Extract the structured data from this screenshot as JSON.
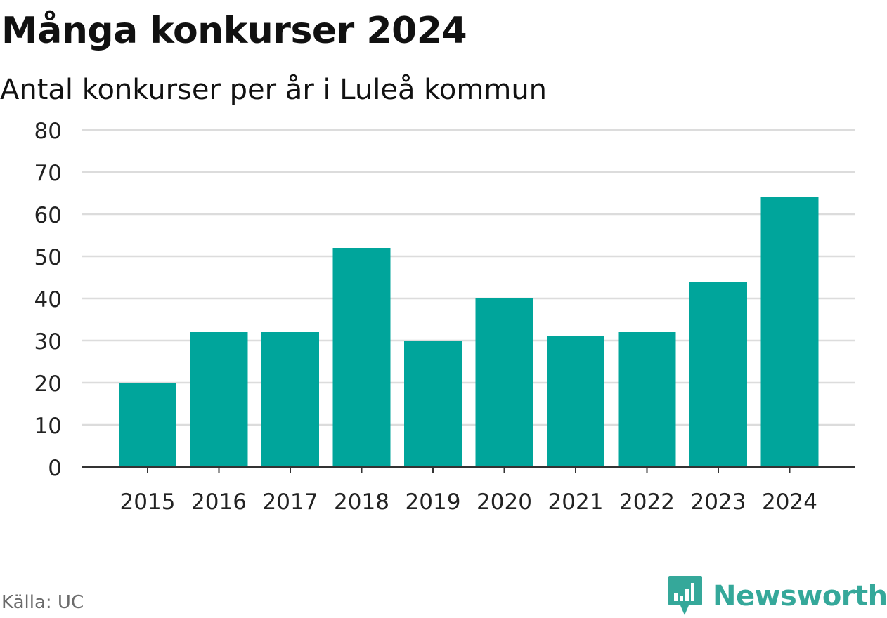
{
  "header": {
    "title": "Många konkurser 2024",
    "subtitle": "Antal konkurser per år i Luleå kommun"
  },
  "footer": {
    "source": "Källa: UC",
    "brand": "Newsworthy",
    "brand_icon": "bar-chart-speech-bubble-icon",
    "brand_color": "#35a89a"
  },
  "colors": {
    "bar": "#00a59b",
    "grid": "#dcdcdc",
    "axis": "#333333",
    "tick_text": "#222222"
  },
  "chart_data": {
    "type": "bar",
    "title": "Många konkurser 2024",
    "subtitle": "Antal konkurser per år i Luleå kommun",
    "xlabel": "",
    "ylabel": "",
    "categories": [
      "2015",
      "2016",
      "2017",
      "2018",
      "2019",
      "2020",
      "2021",
      "2022",
      "2023",
      "2024"
    ],
    "values": [
      20,
      32,
      32,
      52,
      30,
      40,
      31,
      32,
      44,
      64
    ],
    "ylim": [
      0,
      80
    ],
    "yticks": [
      0,
      10,
      20,
      30,
      40,
      50,
      60,
      70,
      80
    ],
    "grid": true,
    "legend": "none"
  }
}
